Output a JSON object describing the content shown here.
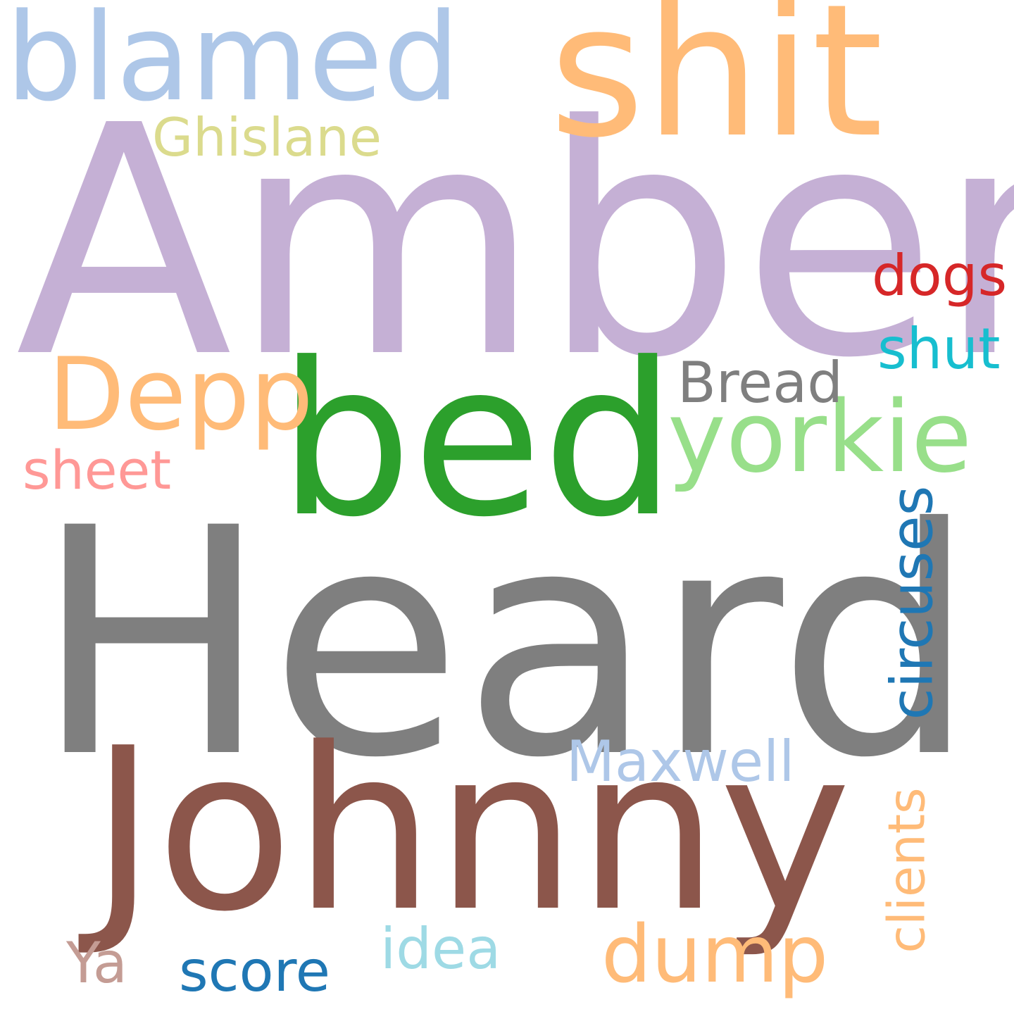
{
  "words": {
    "heard": {
      "text": "Heard",
      "color": "#7f7f7f"
    },
    "amber": {
      "text": "Amber",
      "color": "#c5b0d5"
    },
    "johnny": {
      "text": "Johnny",
      "color": "#8c564b"
    },
    "bed": {
      "text": "bed",
      "color": "#2ca02c"
    },
    "shit": {
      "text": "shit",
      "color": "#ffbb78"
    },
    "blamed": {
      "text": "blamed",
      "color": "#aec7e8"
    },
    "depp": {
      "text": "Depp",
      "color": "#ffbb78"
    },
    "yorkie": {
      "text": "yorkie",
      "color": "#98df8a"
    },
    "circuses": {
      "text": "circuses",
      "color": "#1f77b4"
    },
    "clients": {
      "text": "clients",
      "color": "#ffbb78"
    },
    "dump": {
      "text": "dump",
      "color": "#ffbb78"
    },
    "ghislane": {
      "text": "Ghislane",
      "color": "#dbdb8d"
    },
    "dogs": {
      "text": "dogs",
      "color": "#d62728"
    },
    "shut": {
      "text": "shut",
      "color": "#17becf"
    },
    "bread": {
      "text": "Bread",
      "color": "#7f7f7f"
    },
    "sheet": {
      "text": "sheet",
      "color": "#ff9896"
    },
    "maxwell": {
      "text": "Maxwell",
      "color": "#aec7e8"
    },
    "idea": {
      "text": "idea",
      "color": "#9edae5"
    },
    "score": {
      "text": "score",
      "color": "#1f77b4"
    },
    "ya": {
      "text": "Ya",
      "color": "#c49c94"
    }
  }
}
